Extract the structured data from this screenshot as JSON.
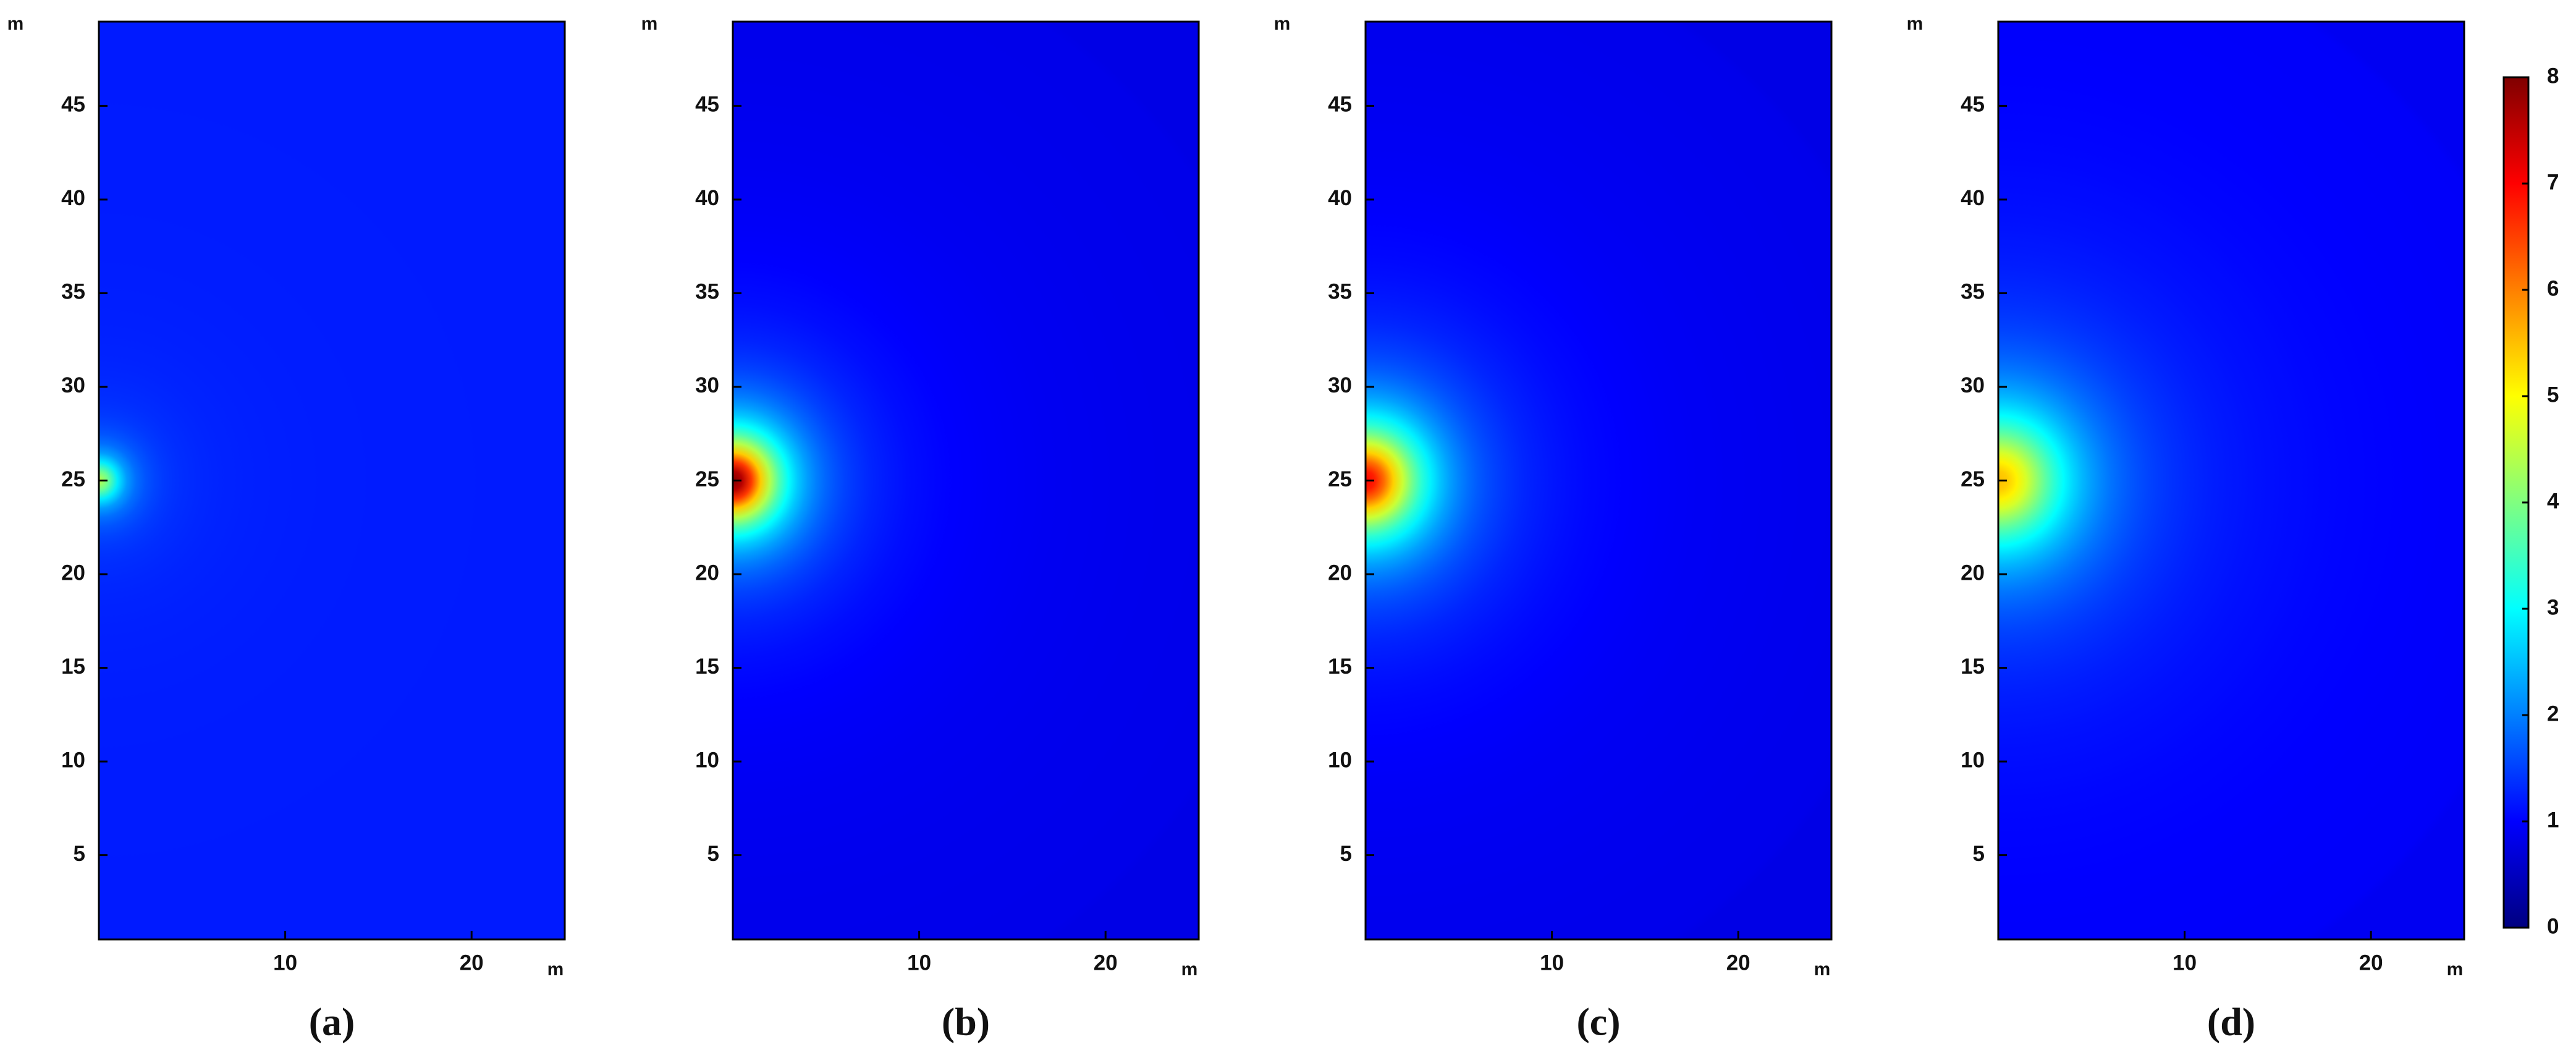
{
  "chart_data": [
    {
      "type": "heatmap",
      "caption": "(a)",
      "x_label": "m",
      "y_label": "m",
      "xlim": [
        0,
        25
      ],
      "ylim": [
        0.5,
        49.5
      ],
      "xticks": [
        10,
        20
      ],
      "yticks": [
        5,
        10,
        15,
        20,
        25,
        30,
        35,
        40,
        45
      ],
      "ambient": 1.2,
      "source": {
        "x": 0,
        "y": 25,
        "value": 4.5,
        "radius": 1
      }
    },
    {
      "type": "heatmap",
      "caption": "(b)",
      "x_label": "m",
      "y_label": "m",
      "xlim": [
        0,
        25
      ],
      "ylim": [
        0.5,
        49.5
      ],
      "xticks": [
        10,
        20
      ],
      "yticks": [
        5,
        10,
        15,
        20,
        25,
        30,
        35,
        40,
        45
      ],
      "ambient": 0.8,
      "source": {
        "x": 0,
        "y": 25,
        "value": 8,
        "radius": 2
      }
    },
    {
      "type": "heatmap",
      "caption": "(c)",
      "x_label": "m",
      "y_label": "m",
      "xlim": [
        0,
        25
      ],
      "ylim": [
        0.5,
        49.5
      ],
      "xticks": [
        10,
        20
      ],
      "yticks": [
        5,
        10,
        15,
        20,
        25,
        30,
        35,
        40,
        45
      ],
      "ambient": 0.8,
      "source": {
        "x": 0,
        "y": 25,
        "value": 7,
        "radius": 2.5
      }
    },
    {
      "type": "heatmap",
      "caption": "(d)",
      "x_label": "m",
      "y_label": "m",
      "xlim": [
        0,
        25
      ],
      "ylim": [
        0.5,
        49.5
      ],
      "xticks": [
        10,
        20
      ],
      "yticks": [
        5,
        10,
        15,
        20,
        25,
        30,
        35,
        40,
        45
      ],
      "ambient": 0.9,
      "source": {
        "x": 0,
        "y": 25,
        "value": 5.5,
        "radius": 3.2
      }
    }
  ],
  "colorbar": {
    "colormap": "jet",
    "lim": [
      0,
      8
    ],
    "ticks": [
      0,
      1,
      2,
      3,
      4,
      5,
      6,
      7,
      8
    ]
  }
}
